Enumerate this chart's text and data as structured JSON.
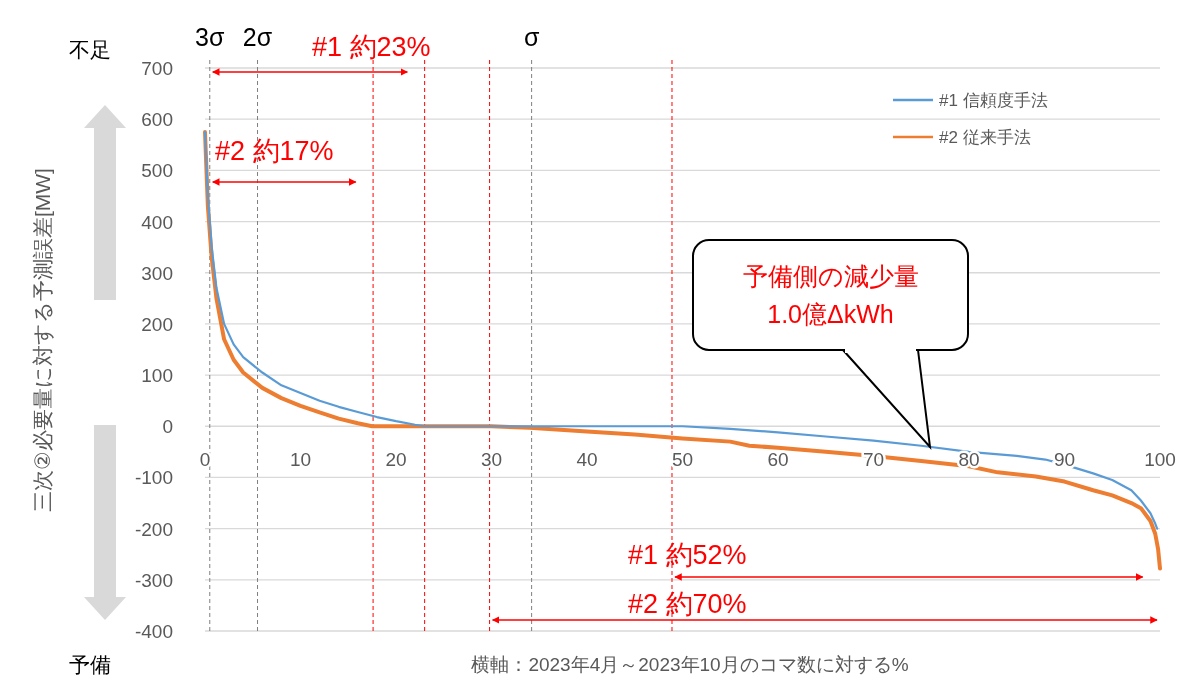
{
  "chart_data": {
    "type": "line",
    "ylabel": "三次②必要量に対する予測誤差[MW]",
    "xlabel": "横軸：2023年4月～2023年10月のコマ数に対する%",
    "xlim": [
      0,
      100
    ],
    "xticks": [
      0,
      10,
      20,
      30,
      40,
      50,
      60,
      70,
      80,
      90,
      100
    ],
    "ylim": [
      -400,
      700
    ],
    "yticks": [
      -400,
      -300,
      -200,
      -100,
      0,
      100,
      200,
      300,
      400,
      500,
      600,
      700
    ],
    "grid": "y",
    "legend": "top right",
    "series": [
      {
        "name": "#1  信頼度手法",
        "color": "#5b9bd5",
        "x": [
          0,
          0.3,
          0.7,
          1.2,
          2,
          3,
          4,
          6,
          8,
          10,
          12,
          14,
          16,
          18,
          20,
          22,
          23,
          30,
          40,
          50,
          55,
          60,
          65,
          70,
          75,
          80,
          85,
          88,
          90,
          93,
          95,
          97,
          98,
          99,
          99.5,
          99.7
        ],
        "values": [
          575,
          450,
          350,
          270,
          200,
          160,
          135,
          105,
          80,
          65,
          50,
          38,
          28,
          18,
          10,
          3,
          0,
          0,
          0,
          0,
          -5,
          -12,
          -20,
          -28,
          -38,
          -50,
          -58,
          -65,
          -75,
          -92,
          -105,
          -125,
          -145,
          -170,
          -190,
          -200
        ]
      },
      {
        "name": "#2  従来手法",
        "color": "#ed7d31",
        "x": [
          0,
          0.3,
          0.7,
          1.2,
          2,
          3,
          4,
          6,
          8,
          10,
          12,
          14,
          16,
          17.5,
          30,
          34,
          40,
          45,
          50,
          55,
          57,
          60,
          65,
          70,
          75,
          80,
          83,
          87,
          90,
          93,
          95,
          97,
          98,
          99,
          99.5,
          99.8,
          100
        ],
        "values": [
          575,
          430,
          330,
          250,
          170,
          130,
          105,
          75,
          55,
          40,
          27,
          15,
          6,
          0,
          0,
          -3,
          -10,
          -16,
          -24,
          -30,
          -38,
          -42,
          -50,
          -58,
          -68,
          -78,
          -90,
          -98,
          -108,
          -125,
          -135,
          -150,
          -160,
          -185,
          -210,
          -240,
          -278
        ]
      }
    ],
    "ref_lines": [
      {
        "axis": "x",
        "value": 0.5,
        "label": "3σ",
        "color": "#7f7f7f",
        "line_style": "dashed"
      },
      {
        "axis": "x",
        "value": 5.5,
        "label": "2σ",
        "color": "#7f7f7f",
        "line_style": "dashed"
      },
      {
        "axis": "x",
        "value": 34.2,
        "label": "σ",
        "color": "#7f7f7f",
        "line_style": "dashed"
      },
      {
        "axis": "x",
        "value": 17.6,
        "color": "#ff0000",
        "line_style": "dashed"
      },
      {
        "axis": "x",
        "value": 23,
        "color": "#ff0000",
        "line_style": "dashed"
      },
      {
        "axis": "x",
        "value": 29.8,
        "color": "#ff0000",
        "line_style": "dashed"
      },
      {
        "axis": "x",
        "value": 48.9,
        "color": "#ff0000",
        "line_style": "dashed"
      }
    ],
    "annotations": [
      "#1 約23%",
      "#2 約17%",
      "#1 約52%",
      "#2 約70%",
      "予備側の減少量\n1.0億ΔkWh",
      "不足",
      "予備"
    ]
  }
}
